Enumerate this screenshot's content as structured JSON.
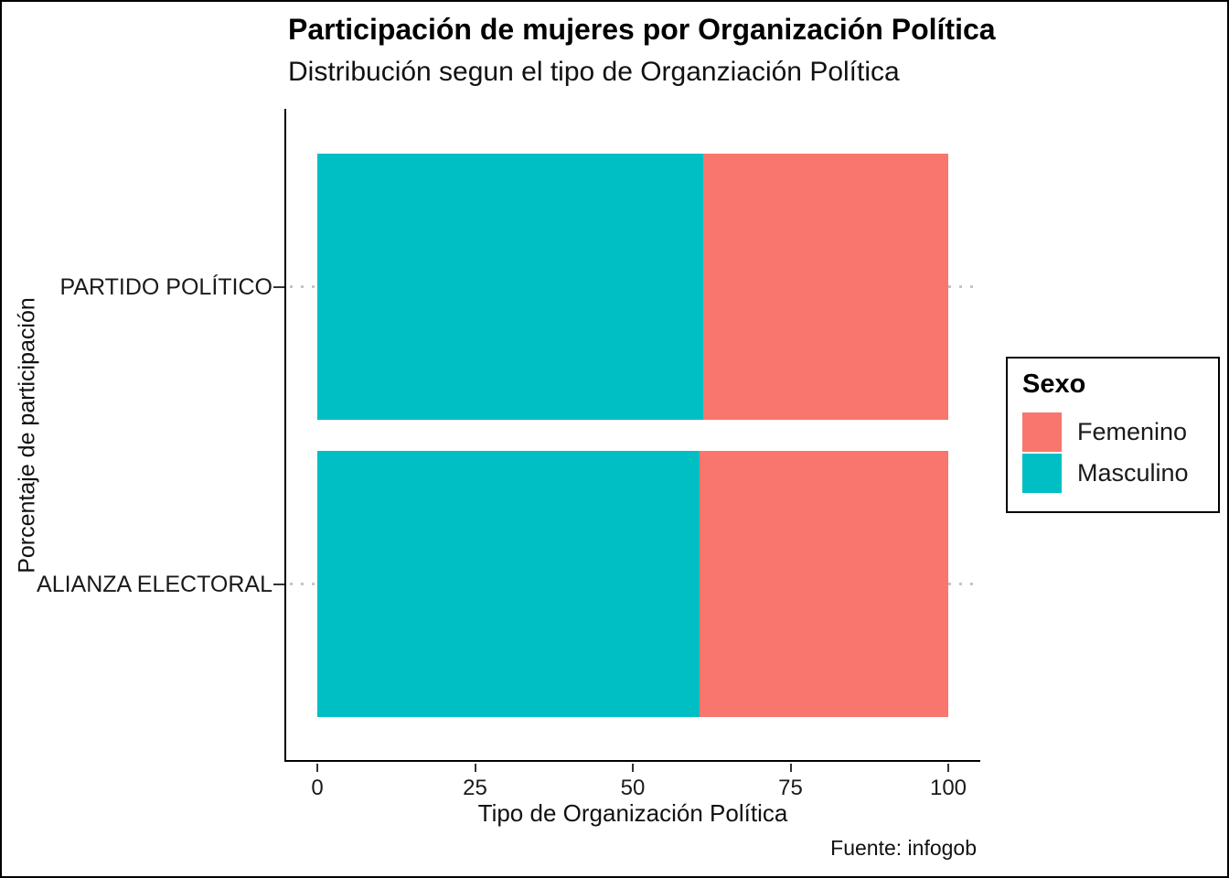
{
  "chart_data": {
    "type": "bar",
    "orientation": "horizontal",
    "stacked": true,
    "unit": "percent",
    "title": "Participación de mujeres por Organización Política",
    "subtitle": "Distribución segun el tipo de Organziación Política",
    "xlabel": "Tipo de Organización Política",
    "ylabel": "Porcentaje de participación",
    "caption": "Fuente: infogob",
    "categories": [
      "PARTIDO POLÍTICO",
      "ALIANZA ELECTORAL"
    ],
    "series": [
      {
        "name": "Masculino",
        "color": "#00BFC4",
        "values": [
          61.2,
          60.6
        ]
      },
      {
        "name": "Femenino",
        "color": "#F8766D",
        "values": [
          38.8,
          39.4
        ]
      }
    ],
    "x_ticks": [
      0,
      25,
      50,
      75,
      100
    ],
    "xlim": [
      0,
      100
    ],
    "legend_title": "Sexo",
    "legend_position": "right",
    "legend_items": [
      {
        "label": "Femenino",
        "color": "#F8766D"
      },
      {
        "label": "Masculino",
        "color": "#00BFC4"
      }
    ],
    "grid": "dotted horizontal lines at category rows"
  },
  "colors": {
    "femenino": "#F8766D",
    "masculino": "#00BFC4",
    "axis_line": "#000000",
    "grid_dots": "#c4c4c4",
    "background": "#ffffff"
  }
}
